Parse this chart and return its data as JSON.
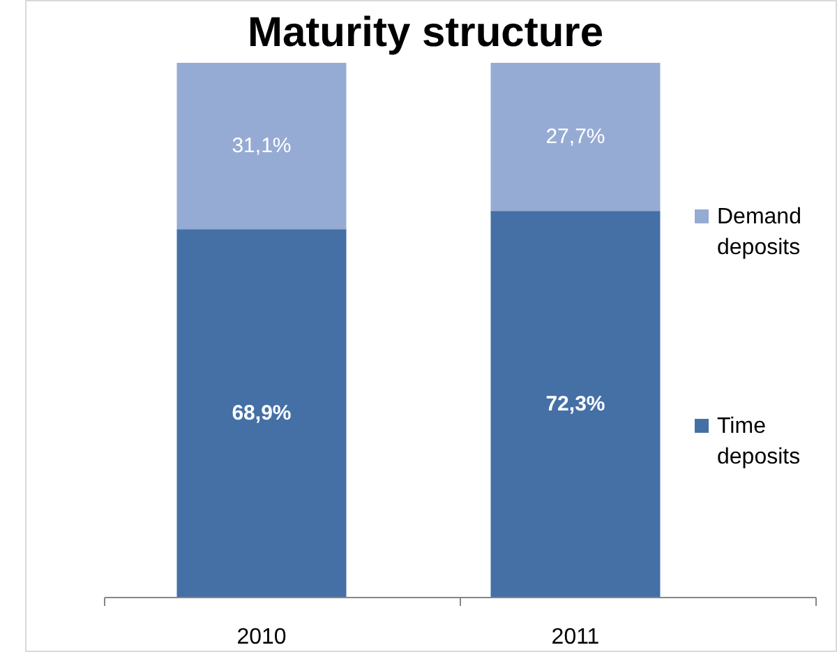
{
  "chart_data": {
    "type": "bar",
    "title": "Maturity structure",
    "categories": [
      "2010",
      "2011"
    ],
    "stacked": true,
    "legend": "right",
    "series": [
      {
        "name": "Time deposits",
        "color": "#4470a6",
        "values": [
          68.9,
          72.3
        ],
        "value_labels": [
          "68,9%",
          "72,3%"
        ]
      },
      {
        "name": "Demand deposits",
        "color": "#95abd4",
        "values": [
          31.1,
          27.7
        ],
        "value_labels": [
          "31,1%",
          "27,7%"
        ]
      }
    ]
  }
}
